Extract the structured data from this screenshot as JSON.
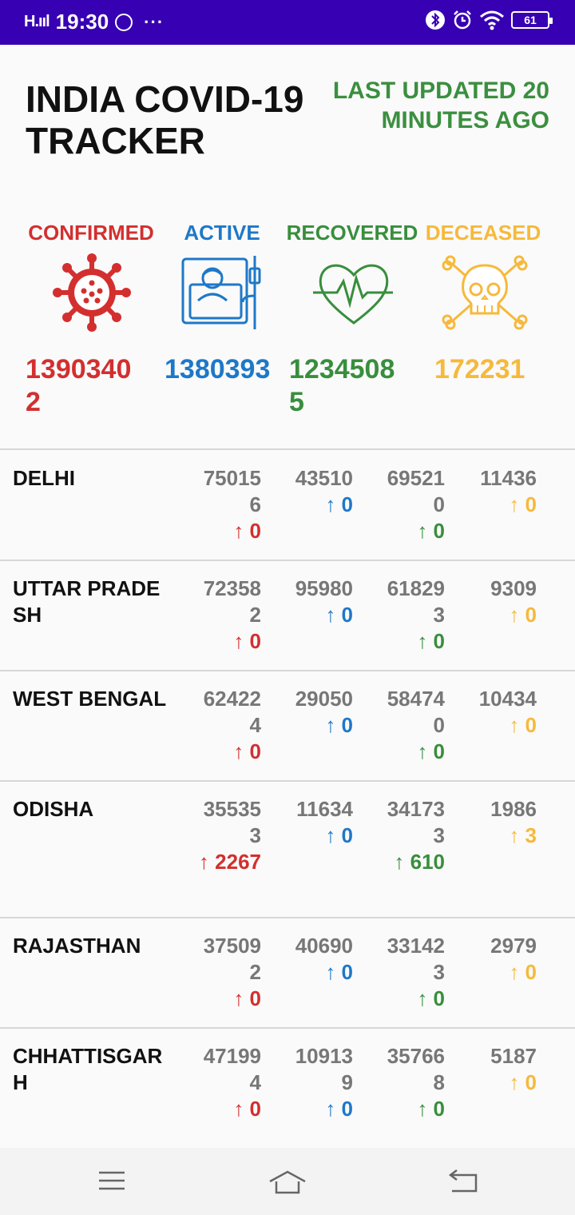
{
  "status_bar": {
    "network": "H.ııl",
    "time": "19:30",
    "dots": "···",
    "battery": "61"
  },
  "header": {
    "title": "INDIA COVID-19 TRACKER",
    "updated": "LAST UPDATED 20 MINUTES AGO"
  },
  "colors": {
    "confirmed": "#d32f2f",
    "active": "#1e78c8",
    "recovered": "#388e3c",
    "deceased": "#f6b93b",
    "status_bar": "#3700b3"
  },
  "summary": {
    "confirmed": {
      "label": "CONFIRMED",
      "value_line1": "1390340",
      "value_line2": "2",
      "icon": "virus-icon"
    },
    "active": {
      "label": "ACTIVE",
      "value_line1": "1380393",
      "value_line2": "",
      "icon": "patient-bed-icon"
    },
    "recovered": {
      "label": "RECOVERED",
      "value_line1": "1234508",
      "value_line2": "5",
      "icon": "heart-pulse-icon"
    },
    "deceased": {
      "label": "DECEASED",
      "value_line1": "172231",
      "value_line2": "",
      "icon": "skull-crossbones-icon"
    }
  },
  "states": [
    {
      "name": "DELHI",
      "confirmed": [
        "75015",
        "6"
      ],
      "confirmed_delta": "↑ 0",
      "active": [
        "43510"
      ],
      "active_delta": "↑ 0",
      "recovered": [
        "69521",
        "0"
      ],
      "recovered_delta": "↑ 0",
      "deceased": [
        "11436"
      ],
      "deceased_delta": "↑ 0"
    },
    {
      "name": "UTTAR PRADESH",
      "confirmed": [
        "72358",
        "2"
      ],
      "confirmed_delta": "↑ 0",
      "active": [
        "95980"
      ],
      "active_delta": "↑ 0",
      "recovered": [
        "61829",
        "3"
      ],
      "recovered_delta": "↑ 0",
      "deceased": [
        "9309"
      ],
      "deceased_delta": "↑ 0"
    },
    {
      "name": "WEST BENGAL",
      "confirmed": [
        "62422",
        "4"
      ],
      "confirmed_delta": "↑ 0",
      "active": [
        "29050"
      ],
      "active_delta": "↑ 0",
      "recovered": [
        "58474",
        "0"
      ],
      "recovered_delta": "↑ 0",
      "deceased": [
        "10434"
      ],
      "deceased_delta": "↑ 0"
    },
    {
      "name": "ODISHA",
      "confirmed": [
        "35535",
        "3"
      ],
      "confirmed_delta": "↑ 2267",
      "active": [
        "11634"
      ],
      "active_delta": "↑ 0",
      "recovered": [
        "34173",
        "3"
      ],
      "recovered_delta": "↑ 610",
      "deceased": [
        "1986"
      ],
      "deceased_delta": "↑ 3"
    },
    {
      "name": "RAJASTHAN",
      "confirmed": [
        "37509",
        "2"
      ],
      "confirmed_delta": "↑ 0",
      "active": [
        "40690"
      ],
      "active_delta": "↑ 0",
      "recovered": [
        "33142",
        "3"
      ],
      "recovered_delta": "↑ 0",
      "deceased": [
        "2979"
      ],
      "deceased_delta": "↑ 0"
    },
    {
      "name": "CHHATTISGARH",
      "confirmed": [
        "47199",
        "4"
      ],
      "confirmed_delta": "↑ 0",
      "active": [
        "10913",
        "9"
      ],
      "active_delta": "↑ 0",
      "recovered": [
        "35766",
        "8"
      ],
      "recovered_delta": "↑ 0",
      "deceased": [
        "5187"
      ],
      "deceased_delta": "↑ 0"
    }
  ],
  "nav": {
    "menu_icon": "menu-icon",
    "home_icon": "home-icon",
    "back_icon": "back-icon"
  }
}
